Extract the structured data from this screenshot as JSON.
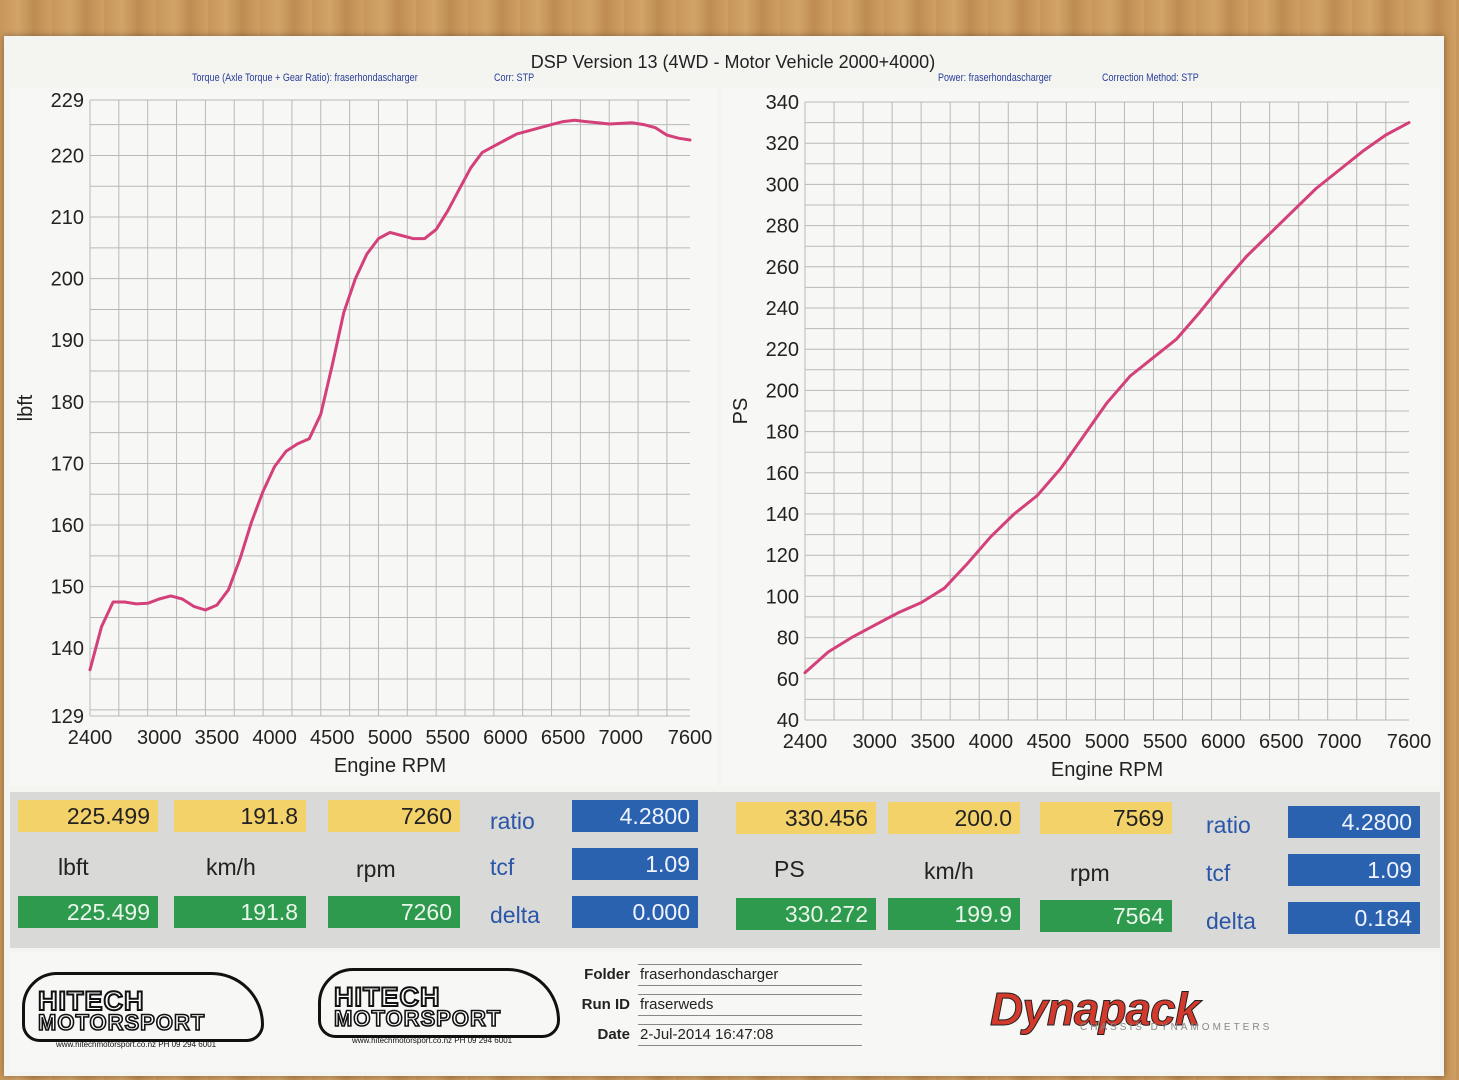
{
  "header": {
    "title": "DSP Version 13 (4WD - Motor Vehicle 2000+4000)",
    "left_sub1": "Torque (Axle Torque + Gear Ratio): fraserhondascharger",
    "left_sub2": "Corr: STP",
    "right_sub1": "Power: fraserhondascharger",
    "right_sub2": "Correction Method: STP"
  },
  "chart_data": [
    {
      "type": "line",
      "xlabel": "Engine RPM",
      "ylabel": "lbft",
      "xlim": [
        2400,
        7600
      ],
      "ylim": [
        129,
        229
      ],
      "x_ticks": [
        2400,
        3000,
        3500,
        4000,
        4500,
        5000,
        5500,
        6000,
        6500,
        7000,
        7600
      ],
      "y_ticks": [
        129,
        140,
        150,
        160,
        170,
        180,
        190,
        200,
        210,
        220,
        229
      ],
      "grid": true,
      "color": "#d4407a",
      "series": [
        {
          "x": [
            2400,
            2500,
            2600,
            2700,
            2800,
            2900,
            3000,
            3100,
            3200,
            3300,
            3400,
            3500,
            3600,
            3700,
            3800,
            3900,
            4000,
            4100,
            4200,
            4300,
            4400,
            4500,
            4600,
            4700,
            4800,
            4900,
            5000,
            5100,
            5200,
            5300,
            5400,
            5500,
            5600,
            5700,
            5800,
            5900,
            6000,
            6100,
            6200,
            6300,
            6400,
            6500,
            6600,
            6700,
            6800,
            6900,
            7000,
            7100,
            7200,
            7300,
            7400,
            7500,
            7600
          ],
          "y": [
            136.5,
            143.5,
            147.5,
            147.5,
            147.2,
            147.3,
            148.0,
            148.5,
            148.0,
            146.8,
            146.2,
            147.0,
            149.5,
            154.5,
            160.5,
            165.5,
            169.5,
            172.0,
            173.2,
            174.0,
            178.0,
            186.0,
            194.5,
            200.0,
            204.0,
            206.5,
            207.5,
            207.0,
            206.5,
            206.5,
            208.0,
            211.0,
            214.5,
            218.0,
            220.5,
            221.5,
            222.5,
            223.5,
            224.0,
            224.5,
            225.0,
            225.5,
            225.7,
            225.5,
            225.3,
            225.1,
            225.2,
            225.3,
            225.0,
            224.5,
            223.3,
            222.8,
            222.5
          ]
        }
      ]
    },
    {
      "type": "line",
      "xlabel": "Engine RPM",
      "ylabel": "PS",
      "xlim": [
        2400,
        7600
      ],
      "ylim": [
        40,
        340
      ],
      "x_ticks": [
        2400,
        3000,
        3500,
        4000,
        4500,
        5000,
        5500,
        6000,
        6500,
        7000,
        7600
      ],
      "y_ticks": [
        40,
        60,
        80,
        100,
        120,
        140,
        160,
        180,
        200,
        220,
        240,
        260,
        280,
        300,
        320,
        340
      ],
      "grid": true,
      "color": "#d4407a",
      "series": [
        {
          "x": [
            2400,
            2600,
            2800,
            3000,
            3200,
            3400,
            3600,
            3800,
            4000,
            4200,
            4400,
            4600,
            4800,
            5000,
            5200,
            5400,
            5600,
            5800,
            6000,
            6200,
            6400,
            6600,
            6800,
            7000,
            7200,
            7400,
            7600
          ],
          "y": [
            63,
            73,
            80,
            86,
            92,
            97,
            104,
            116,
            129,
            140,
            149,
            162,
            178,
            194,
            207,
            216,
            225,
            238,
            252,
            265,
            276,
            287,
            298,
            307,
            316,
            324,
            330
          ]
        }
      ]
    }
  ],
  "readouts": {
    "left": {
      "yellow": [
        "225.499",
        "191.8",
        "7260"
      ],
      "units": [
        "lbft",
        "km/h",
        "rpm"
      ],
      "green": [
        "225.499",
        "191.8",
        "7260"
      ],
      "labels": [
        "ratio",
        "tcf",
        "delta"
      ],
      "blue": [
        "4.2800",
        "1.09",
        "0.000"
      ]
    },
    "right": {
      "yellow": [
        "330.456",
        "200.0",
        "7569"
      ],
      "units": [
        "PS",
        "km/h",
        "rpm"
      ],
      "green": [
        "330.272",
        "199.9",
        "7564"
      ],
      "labels": [
        "ratio",
        "tcf",
        "delta"
      ],
      "blue": [
        "4.2800",
        "1.09",
        "0.184"
      ]
    }
  },
  "footer": {
    "logo_line1": "HITECH",
    "logo_line2": "MOTORSPORT",
    "logo_line3": "www.hitechmotorsport.co.nz    PH 09 294 6001",
    "folder_label": "Folder",
    "folder_value": "fraserhondascharger",
    "runid_label": "Run ID",
    "runid_value": "fraserweds",
    "date_label": "Date",
    "date_value": "2-Jul-2014 16:47:08",
    "brand": "Dynapack",
    "brand_sub": "CHASSIS DYNAMOMETERS"
  },
  "colors": {
    "curve": "#d4407a",
    "grid": "#b8b8b8",
    "yellow_box": "#f4d26a",
    "green_box": "#2e9a4e",
    "blue_box": "#2b62b0",
    "label_blue": "#2a55a8"
  }
}
